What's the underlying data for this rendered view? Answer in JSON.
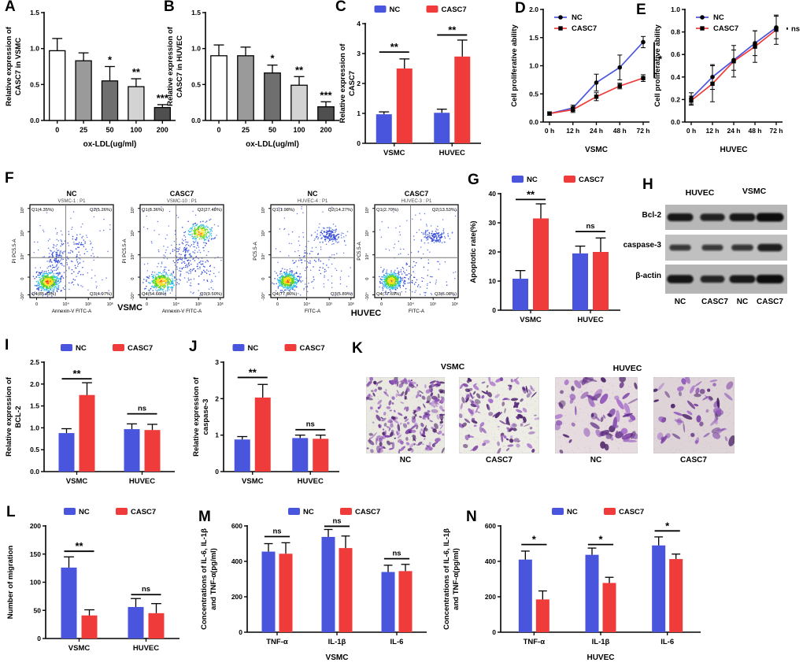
{
  "colors": {
    "nc": "#4a55dd",
    "casc7": "#ef3b3a",
    "axis": "#000000"
  },
  "chart_data": [
    {
      "panel": "A",
      "type": "bar",
      "ylabel": [
        "Relative expression of",
        "CASC7 in VSMC"
      ],
      "xlabel": "ox-LDL(ug/ml)",
      "categories": [
        "0",
        "25",
        "50",
        "100",
        "200"
      ],
      "values": [
        0.97,
        0.83,
        0.55,
        0.47,
        0.18
      ],
      "errors": [
        0.17,
        0.11,
        0.2,
        0.11,
        0.04
      ],
      "sig_marks": [
        "",
        "",
        "*",
        "**",
        "***"
      ],
      "fills": [
        "#ffffff",
        "#9a9a9a",
        "#6f6f6f",
        "#d3d3d3",
        "#4f4f4f"
      ],
      "ylim": [
        0,
        1.5
      ],
      "yticks": [
        "0.0",
        "0.5",
        "1.0",
        "1.5"
      ]
    },
    {
      "panel": "B",
      "type": "bar",
      "ylabel": [
        "Relative expression of",
        "CASC7 in HUVEC"
      ],
      "xlabel": "ox-LDL(ug/ml)",
      "categories": [
        "0",
        "25",
        "50",
        "100",
        "200"
      ],
      "values": [
        0.9,
        0.9,
        0.66,
        0.49,
        0.19
      ],
      "errors": [
        0.15,
        0.12,
        0.11,
        0.12,
        0.07
      ],
      "sig_marks": [
        "",
        "",
        "*",
        "**",
        "***"
      ],
      "fills": [
        "#ffffff",
        "#9a9a9a",
        "#6f6f6f",
        "#d3d3d3",
        "#4f4f4f"
      ],
      "ylim": [
        0,
        1.5
      ],
      "yticks": [
        "0.0",
        "0.5",
        "1.0",
        "1.5"
      ]
    },
    {
      "panel": "C",
      "type": "grouped_bar",
      "ylabel": [
        "Relative expression of",
        "CASC7"
      ],
      "groups": [
        "VSMC",
        "HUVEC"
      ],
      "series": [
        {
          "name": "NC",
          "values": [
            0.97,
            1.02
          ],
          "errors": [
            0.08,
            0.12
          ]
        },
        {
          "name": "CASC7",
          "values": [
            2.5,
            2.9
          ],
          "errors": [
            0.32,
            0.55
          ]
        }
      ],
      "ylim": [
        0,
        4
      ],
      "yticks": [
        "0",
        "1",
        "2",
        "3",
        "4"
      ],
      "sig": [
        {
          "group": 0,
          "label": "**",
          "y": 3.05
        },
        {
          "group": 1,
          "label": "**",
          "y": 3.62
        }
      ],
      "legend": true
    },
    {
      "panel": "D",
      "type": "line",
      "ylabel": [
        "Cell proliferative ability"
      ],
      "xlabel": "VSMC",
      "x": [
        "0 h",
        "12 h",
        "24 h",
        "48 h",
        "72 h"
      ],
      "series": [
        {
          "name": "NC",
          "marker": "circle",
          "values": [
            0.15,
            0.25,
            0.7,
            0.97,
            1.42
          ],
          "errors": [
            0.03,
            0.05,
            0.15,
            0.22,
            0.1
          ]
        },
        {
          "name": "CASC7",
          "marker": "square",
          "values": [
            0.15,
            0.22,
            0.45,
            0.64,
            0.78
          ],
          "errors": [
            0.03,
            0.05,
            0.07,
            0.05,
            0.06
          ]
        }
      ],
      "ylim": [
        0,
        2
      ],
      "yticks": [
        "0.0",
        "0.5",
        "1.0",
        "1.5",
        "2.0"
      ],
      "sig_end": "*"
    },
    {
      "panel": "E",
      "type": "line",
      "ylabel": [
        "Cell proliferative ability"
      ],
      "xlabel": "HUVEC",
      "x": [
        "0 h",
        "12 h",
        "24 h",
        "48 h",
        "72 h"
      ],
      "series": [
        {
          "name": "NC",
          "marker": "circle",
          "values": [
            0.21,
            0.4,
            0.55,
            0.7,
            0.84
          ],
          "errors": [
            0.05,
            0.11,
            0.09,
            0.11,
            0.1
          ]
        },
        {
          "name": "CASC7",
          "marker": "square",
          "values": [
            0.19,
            0.34,
            0.54,
            0.67,
            0.82
          ],
          "errors": [
            0.04,
            0.16,
            0.14,
            0.14,
            0.13
          ]
        }
      ],
      "ylim": [
        0,
        1
      ],
      "yticks": [
        "0.0",
        "0.2",
        "0.4",
        "0.6",
        "0.8",
        "1.0"
      ],
      "sig_end": "ns"
    },
    {
      "panel": "G",
      "type": "grouped_bar",
      "ylabel": [
        "Apoptotic rate(%)"
      ],
      "groups": [
        "VSMC",
        "HUVEC"
      ],
      "series": [
        {
          "name": "NC",
          "values": [
            10.8,
            19.5
          ],
          "errors": [
            2.8,
            2.5
          ]
        },
        {
          "name": "CASC7",
          "values": [
            31.5,
            20.0
          ],
          "errors": [
            5.0,
            4.8
          ]
        }
      ],
      "ylim": [
        0,
        40
      ],
      "yticks": [
        "0",
        "10",
        "20",
        "30",
        "40"
      ],
      "sig": [
        {
          "group": 0,
          "label": "**",
          "y": 38
        },
        {
          "group": 1,
          "label": "ns",
          "y": 27
        }
      ],
      "legend": true
    },
    {
      "panel": "I",
      "type": "grouped_bar",
      "ylabel": [
        "Relative expression of",
        "BCL-2"
      ],
      "groups": [
        "VSMC",
        "HUVEC"
      ],
      "series": [
        {
          "name": "NC",
          "values": [
            0.88,
            0.97
          ],
          "errors": [
            0.1,
            0.12
          ]
        },
        {
          "name": "CASC7",
          "values": [
            1.75,
            0.95
          ],
          "errors": [
            0.28,
            0.13
          ]
        }
      ],
      "ylim": [
        0,
        2.5
      ],
      "yticks": [
        "0.0",
        "0.5",
        "1.0",
        "1.5",
        "2.0",
        "2.5"
      ],
      "sig": [
        {
          "group": 0,
          "label": "**",
          "y": 2.12
        },
        {
          "group": 1,
          "label": "ns",
          "y": 1.32
        }
      ],
      "legend": true
    },
    {
      "panel": "J",
      "type": "grouped_bar",
      "ylabel": [
        "Relative expression of",
        "caspase-3"
      ],
      "groups": [
        "VSMC",
        "HUVEC"
      ],
      "series": [
        {
          "name": "NC",
          "values": [
            0.88,
            0.92
          ],
          "errors": [
            0.08,
            0.08
          ]
        },
        {
          "name": "CASC7",
          "values": [
            2.03,
            0.9
          ],
          "errors": [
            0.36,
            0.1
          ]
        }
      ],
      "ylim": [
        0,
        3
      ],
      "yticks": [
        "0",
        "1",
        "2",
        "3"
      ],
      "sig": [
        {
          "group": 0,
          "label": "**",
          "y": 2.58
        },
        {
          "group": 1,
          "label": "ns",
          "y": 1.15
        }
      ],
      "legend": true
    },
    {
      "panel": "L",
      "type": "grouped_bar",
      "ylabel": [
        "Number of migration"
      ],
      "groups": [
        "VSMC",
        "HUVEC"
      ],
      "series": [
        {
          "name": "NC",
          "values": [
            126,
            56
          ],
          "errors": [
            19,
            15
          ]
        },
        {
          "name": "CASC7",
          "values": [
            41,
            45
          ],
          "errors": [
            10,
            17
          ]
        }
      ],
      "ylim": [
        0,
        200
      ],
      "yticks": [
        "0",
        "50",
        "100",
        "150",
        "200"
      ],
      "sig": [
        {
          "group": 0,
          "label": "**",
          "y": 155
        },
        {
          "group": 1,
          "label": "ns",
          "y": 78
        }
      ],
      "legend": true
    },
    {
      "panel": "M",
      "type": "grouped_bar",
      "ylabel": [
        "Concentrations of IL-6, IL-1β",
        "and TNF-α(pg/ml)"
      ],
      "groups": [
        "TNF-α",
        "IL-1β",
        "IL-6"
      ],
      "xlabel": "VSMC",
      "series": [
        {
          "name": "NC",
          "values": [
            455,
            538,
            340
          ],
          "errors": [
            45,
            42,
            38
          ]
        },
        {
          "name": "CASC7",
          "values": [
            443,
            475,
            345
          ],
          "errors": [
            62,
            68,
            38
          ]
        }
      ],
      "ylim": [
        0,
        600
      ],
      "yticks": [
        "0",
        "200",
        "400",
        "600"
      ],
      "sig": [
        {
          "group": 0,
          "label": "ns",
          "y": 540
        },
        {
          "group": 1,
          "label": "ns",
          "y": 598
        },
        {
          "group": 2,
          "label": "ns",
          "y": 415
        }
      ],
      "legend": true
    },
    {
      "panel": "N",
      "type": "grouped_bar",
      "ylabel": [
        "Concentrations of IL-6, IL-1β",
        "and TNF-α(pg/ml)"
      ],
      "groups": [
        "TNF-α",
        "IL-1β",
        "IL-6"
      ],
      "xlabel": "HUVEC",
      "series": [
        {
          "name": "NC",
          "values": [
            410,
            437,
            490
          ],
          "errors": [
            48,
            38,
            48
          ]
        },
        {
          "name": "CASC7",
          "values": [
            185,
            278,
            413
          ],
          "errors": [
            48,
            32,
            28
          ]
        }
      ],
      "ylim": [
        0,
        600
      ],
      "yticks": [
        "0",
        "200",
        "400",
        "600"
      ],
      "sig": [
        {
          "group": 0,
          "label": "*",
          "y": 495
        },
        {
          "group": 1,
          "label": "*",
          "y": 495
        },
        {
          "group": 2,
          "label": "*",
          "y": 572
        }
      ],
      "legend": true
    }
  ],
  "flow": {
    "label": "F",
    "plots": [
      {
        "title": "NC",
        "subtitle": "VSMC-1 : P1",
        "xlabel": "Annexin-V FITC-A",
        "ylabel": "PI PC5.5-A",
        "q1": "Q1(4.35%)",
        "q2": "Q2(5.26%)",
        "q3": "Q3(4.97%)",
        "q4": "Q4(85.43%)"
      },
      {
        "title": "CASC7",
        "subtitle": "VSMC-10 : P1",
        "xlabel": "Annexin-V FITC-A",
        "ylabel": "PI PC5.5-A",
        "q1": "Q1(8.36%)",
        "q2": "Q2(27.48%)",
        "q3": "Q3(9.50%)",
        "q4": "Q4(54.66%)"
      },
      {
        "title": "NC",
        "subtitle": "HUVEC-4 : P1",
        "xlabel": "FITC-A",
        "ylabel": "PC5.5-A",
        "q1": "Q1(1.98%)",
        "q2": "Q2(14.27%)",
        "q3": "Q3(5.89%)",
        "q4": "Q4(77.86%)"
      },
      {
        "title": "CASC7",
        "subtitle": "HUVEC-3 : P1",
        "xlabel": "FITC-A",
        "ylabel": "PC5.5-A",
        "q1": "Q1(2.70%)",
        "q2": "Q2(13.53%)",
        "q3": "Q3(6.08%)",
        "q4": "Q4(77.69%)"
      }
    ],
    "xticks": [
      "0",
      "10⁴",
      "10⁵",
      "10⁶"
    ],
    "yticks": [
      "-10⁴",
      "0",
      "10⁴",
      "10⁵",
      "10⁶"
    ],
    "group_labels": [
      "VSMC",
      "HUVEC"
    ]
  },
  "blot": {
    "label": "H",
    "col_headers": [
      "HUVEC",
      "VSMC"
    ],
    "row_labels": [
      "Bcl-2",
      "caspase-3",
      "β-actin"
    ],
    "lane_labels": [
      "NC",
      "CASC7",
      "NC",
      "CASC7"
    ],
    "band_intensity": [
      [
        0.85,
        0.72,
        0.85,
        1.0
      ],
      [
        0.42,
        0.4,
        0.45,
        0.75
      ],
      [
        0.9,
        0.68,
        0.85,
        1.0
      ]
    ]
  },
  "migration": {
    "label": "K",
    "group_titles": [
      "VSMC",
      "HUVEC"
    ],
    "image_labels": [
      "NC",
      "CASC7",
      "NC",
      "CASC7"
    ],
    "densities": [
      240,
      125,
      70,
      58
    ],
    "blob_scale": [
      1.0,
      1.0,
      1.6,
      1.5
    ],
    "backgrounds": [
      "#eae9e1",
      "#edece5",
      "#e6dbde",
      "#ded4d8"
    ]
  }
}
